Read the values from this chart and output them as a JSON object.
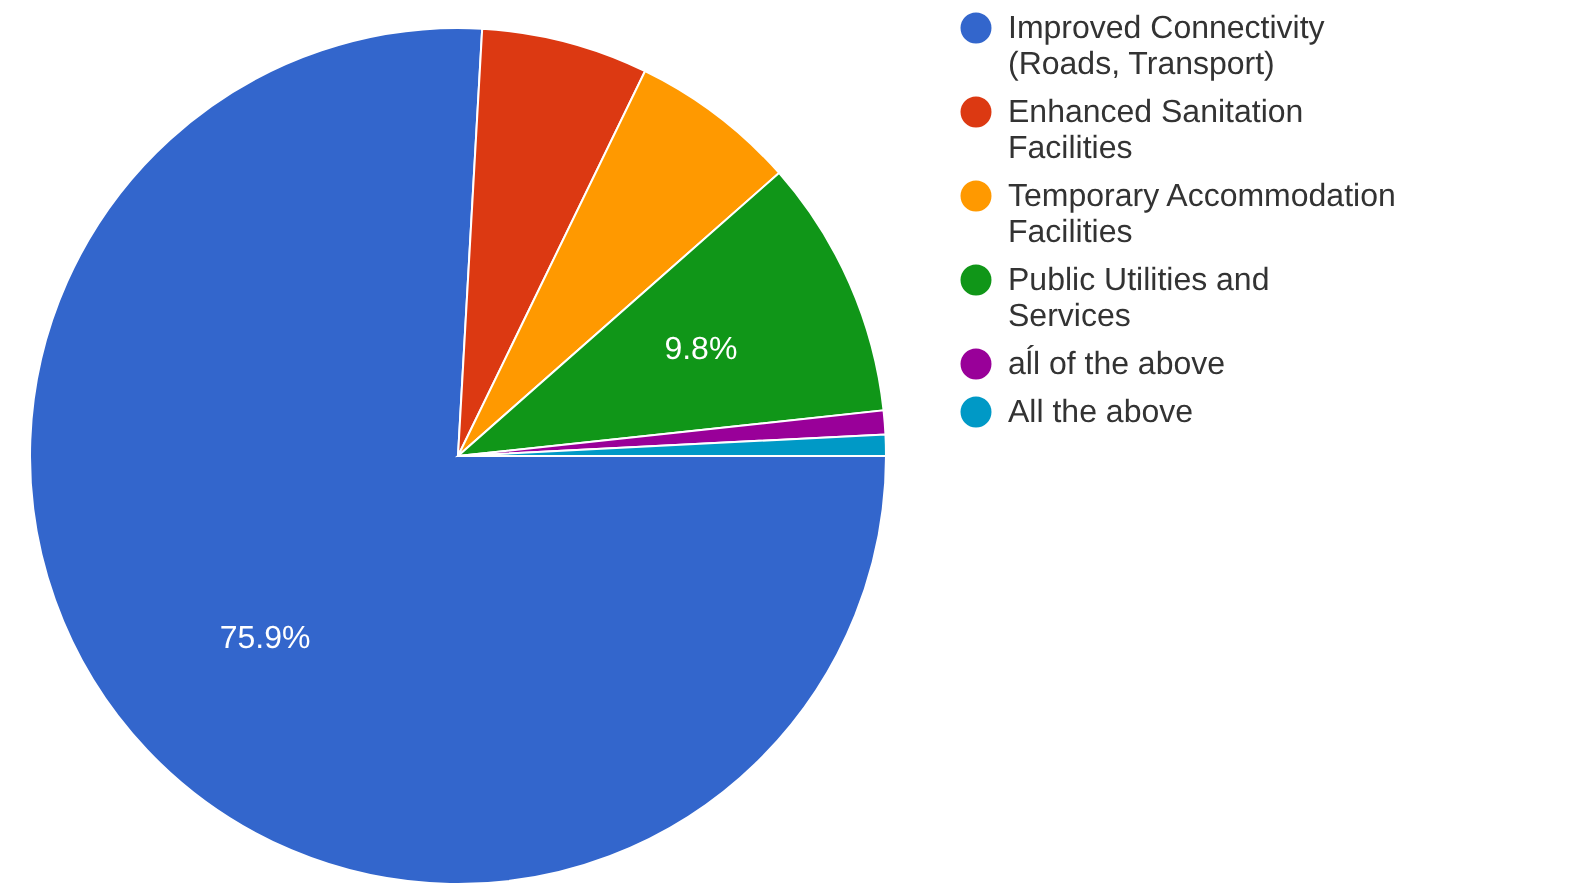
{
  "chart_data": {
    "type": "pie",
    "categories": [
      "Improved Connectivity (Roads, Transport)",
      "Enhanced Sanitation Facilities",
      "Temporary Accommodation Facilities",
      "Public Utilities and Services",
      "aĺl of the above",
      "All the above"
    ],
    "values": [
      75.9,
      6.3,
      6.3,
      9.8,
      0.9,
      0.8
    ],
    "colors": [
      "#3366cc",
      "#dc3912",
      "#ff9900",
      "#109618",
      "#990099",
      "#0099c6"
    ],
    "value_labels": [
      "75.9%",
      null,
      null,
      "9.8%",
      null,
      null
    ],
    "legend": "right"
  }
}
